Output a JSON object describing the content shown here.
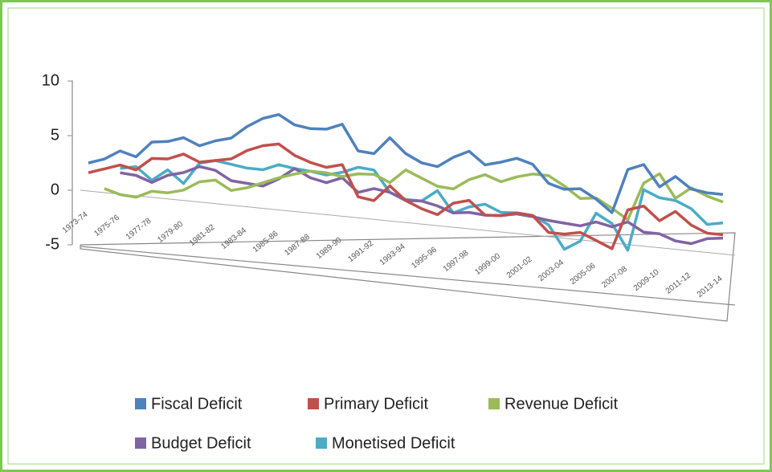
{
  "chart_data": {
    "type": "line",
    "categories": [
      "1973-74",
      null,
      "1975-76",
      null,
      "1977-78",
      null,
      "1979-80",
      null,
      "1981-82",
      null,
      "1983-84",
      null,
      "1985-86",
      null,
      "1987-88",
      null,
      "1989-90",
      null,
      "1991-92",
      null,
      "1993-94",
      null,
      "1995-96",
      null,
      "1997-98",
      null,
      "1999-00",
      null,
      "2001-02",
      null,
      "2003-04",
      null,
      "2005-06",
      null,
      "2007-08",
      null,
      "2009-10",
      null,
      "2011-12",
      null,
      "2013-14"
    ],
    "series": [
      {
        "name": "Fiscal Deficit",
        "color": "#4f81bd",
        "values": [
          2.5,
          3.0,
          3.9,
          3.5,
          5.0,
          5.2,
          5.7,
          5.1,
          5.7,
          6.1,
          7.3,
          8.2,
          8.7,
          7.9,
          7.7,
          7.8,
          8.4,
          6.1,
          6.0,
          7.6,
          6.3,
          5.6,
          5.4,
          6.4,
          7.1,
          6.0,
          6.4,
          6.9,
          6.5,
          4.9,
          4.5,
          4.7,
          3.9,
          2.8,
          6.9,
          7.5,
          5.6,
          6.7,
          5.7,
          5.5,
          5.5
        ]
      },
      {
        "name": "Primary Deficit",
        "color": "#c0504d",
        "values": [
          1.6,
          2.1,
          2.6,
          2.3,
          3.5,
          3.6,
          4.2,
          3.6,
          3.9,
          4.2,
          5.1,
          5.7,
          6.0,
          5.1,
          4.6,
          4.3,
          4.7,
          1.9,
          1.7,
          3.2,
          2.0,
          1.4,
          1.0,
          2.2,
          2.6,
          1.4,
          1.5,
          1.9,
          1.8,
          0.4,
          0.4,
          0.7,
          0.1,
          -0.5,
          3.2,
          3.7,
          2.5,
          3.5,
          2.4,
          1.8,
          1.8
        ]
      },
      {
        "name": "Revenue Deficit",
        "color": "#9bbb59",
        "values": [
          null,
          0.3,
          -0.1,
          -0.2,
          0.5,
          0.5,
          0.9,
          1.8,
          2.1,
          1.3,
          1.7,
          2.3,
          2.9,
          3.4,
          3.8,
          3.8,
          3.6,
          4.0,
          4.1,
          3.5,
          4.8,
          4.2,
          3.6,
          3.5,
          4.5,
          5.1,
          4.6,
          5.2,
          5.6,
          5.6,
          4.8,
          3.8,
          4.0,
          3.2,
          2.3,
          5.8,
          6.8,
          4.7,
          5.8,
          5.2,
          4.8
        ]
      },
      {
        "name": "Budget Deficit",
        "color": "#8064a2",
        "values": [
          null,
          null,
          1.9,
          1.8,
          1.3,
          2.1,
          2.5,
          3.2,
          3.0,
          2.2,
          2.1,
          2.0,
          2.8,
          3.9,
          3.2,
          2.9,
          3.5,
          2.3,
          2.8,
          2.6,
          2.0,
          2.1,
          1.8,
          1.3,
          1.5,
          1.4,
          1.5,
          1.8,
          1.7,
          1.5,
          1.4,
          1.3,
          1.8,
          1.5,
          2.1,
          1.3,
          1.3,
          0.8,
          0.7,
          1.3,
          1.5
        ]
      },
      {
        "name": "Monetised Deficit",
        "color": "#4bacc6",
        "values": [
          null,
          null,
          2.3,
          2.6,
          1.5,
          2.6,
          1.5,
          3.5,
          3.9,
          3.7,
          3.5,
          3.5,
          4.1,
          3.9,
          3.8,
          3.6,
          4.0,
          4.6,
          4.5,
          2.6,
          2.1,
          2.1,
          3.2,
          1.3,
          2.0,
          2.4,
          1.8,
          1.9,
          1.8,
          1.1,
          -1.0,
          -0.1,
          2.6,
          1.8,
          -0.5,
          5.2,
          4.6,
          4.5,
          3.9,
          2.6,
          2.9
        ]
      }
    ],
    "ylim": [
      -5,
      10
    ],
    "yticks": [
      -5,
      0,
      5,
      10
    ],
    "grid": false
  }
}
